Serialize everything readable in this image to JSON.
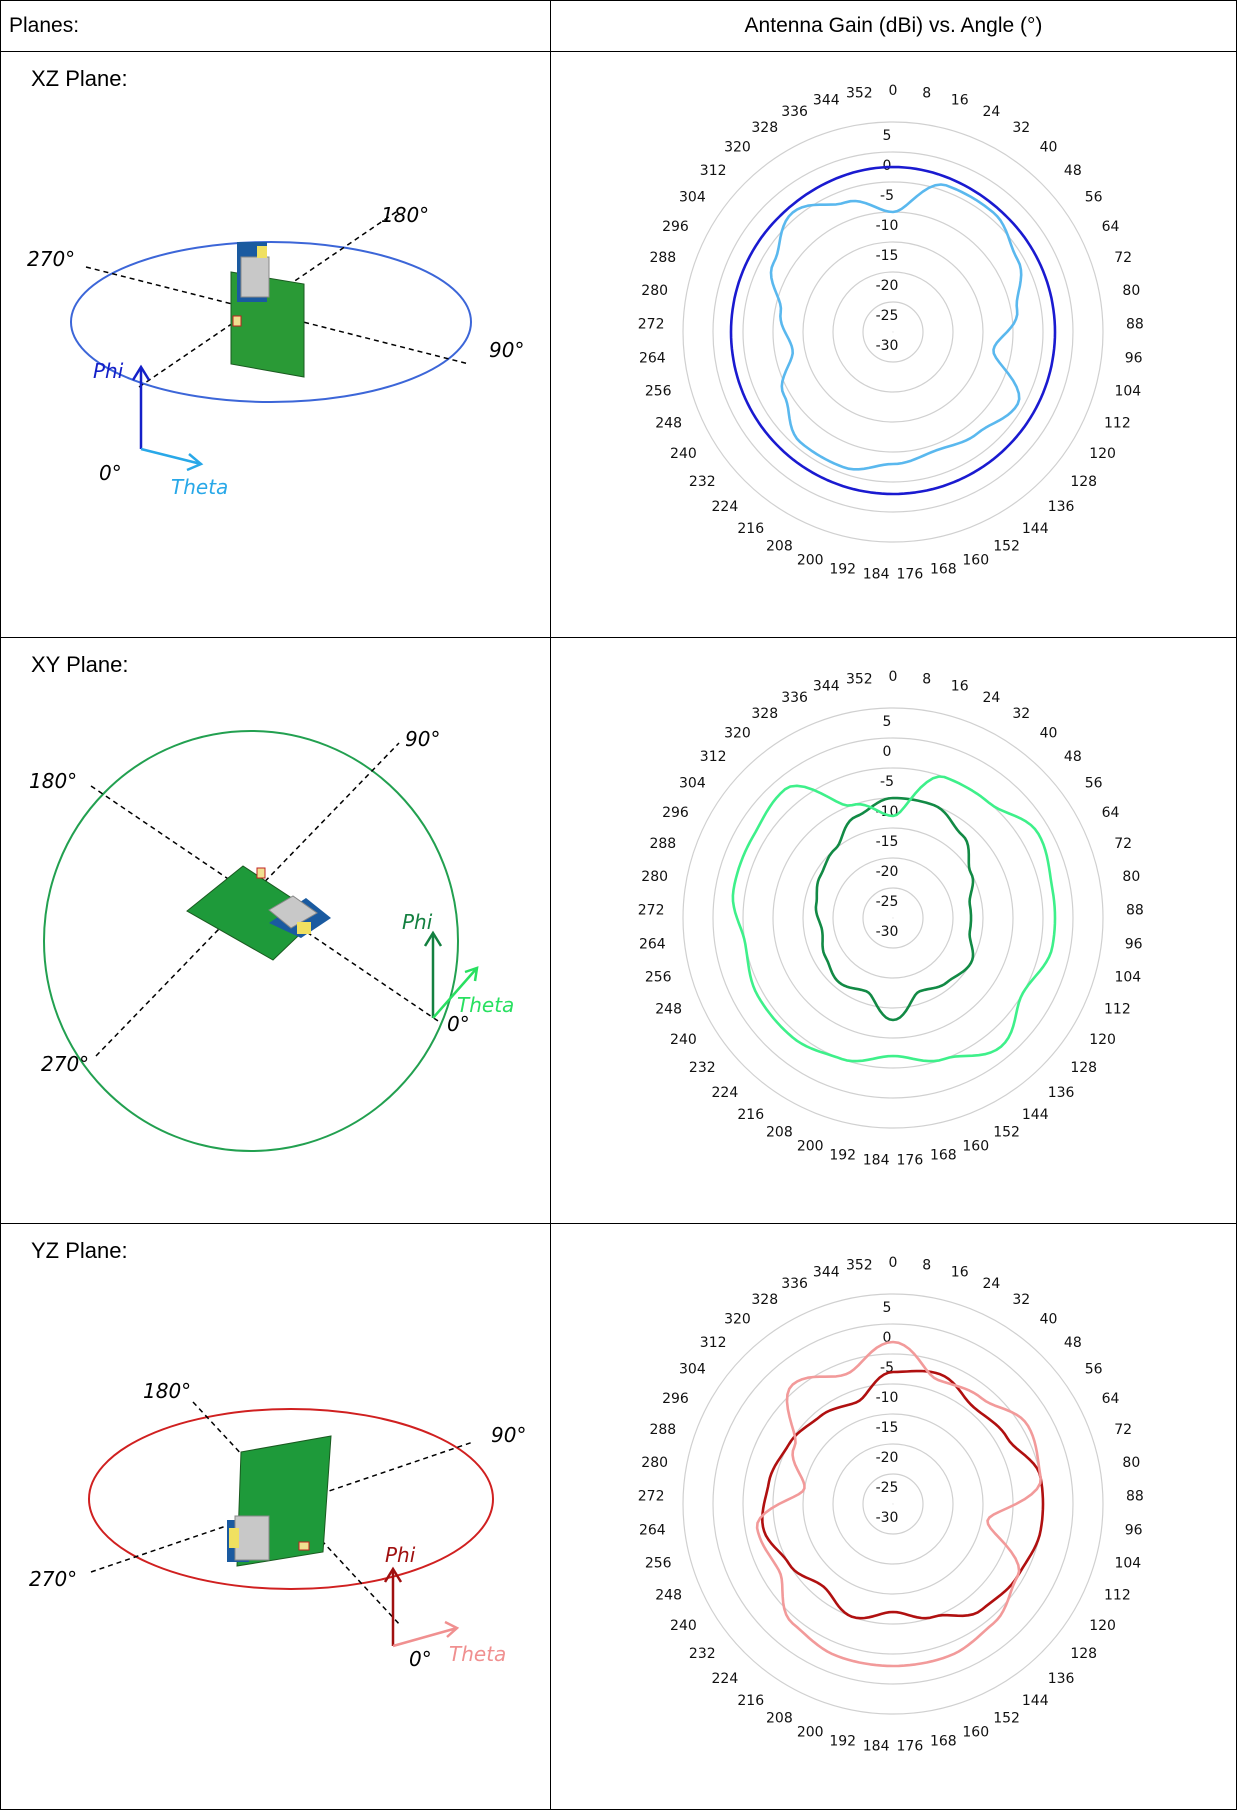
{
  "header": {
    "left": "Planes:",
    "right": "Antenna Gain (dBi) vs. Angle (°)"
  },
  "axis": {
    "radial_ticks": [
      "5",
      "0",
      "-5",
      "-10",
      "-15",
      "-20",
      "-25",
      "-30"
    ],
    "angle_ticks": [
      "0",
      "8",
      "16",
      "24",
      "32",
      "40",
      "48",
      "56",
      "64",
      "72",
      "80",
      "88",
      "96",
      "104",
      "112",
      "120",
      "128",
      "136",
      "144",
      "152",
      "160",
      "168",
      "176",
      "184",
      "192",
      "200",
      "208",
      "216",
      "224",
      "232",
      "240",
      "248",
      "256",
      "264",
      "272",
      "280",
      "288",
      "296",
      "304",
      "312",
      "320",
      "328",
      "336",
      "344",
      "352"
    ]
  },
  "planes": [
    {
      "label": "XZ Plane:",
      "angles": {
        "a0": "0°",
        "a90": "90°",
        "a180": "180°",
        "a270": "270°"
      },
      "phi": "Phi",
      "theta": "Theta",
      "colors": {
        "ellipse": "#3c66d8",
        "phi": "#1420c8",
        "theta": "#28a8e8"
      }
    },
    {
      "label": "XY Plane:",
      "angles": {
        "a0": "0°",
        "a90": "90°",
        "a180": "180°",
        "a270": "270°"
      },
      "phi": "Phi",
      "theta": "Theta",
      "colors": {
        "ellipse": "#22a050",
        "phi": "#138040",
        "theta": "#28e060"
      }
    },
    {
      "label": "YZ Plane:",
      "angles": {
        "a0": "0°",
        "a90": "90°",
        "a180": "180°",
        "a270": "270°"
      },
      "phi": "Phi",
      "theta": "Theta",
      "colors": {
        "ellipse": "#d02020",
        "phi": "#a01010",
        "theta": "#f09090"
      }
    }
  ],
  "chart_data": [
    {
      "type": "polar-line",
      "plane": "XZ Plane",
      "r_range": [
        -30,
        5
      ],
      "angle_unit": "degrees",
      "series": [
        {
          "color": "#1a1ad0",
          "angles": [
            0,
            45,
            90,
            135,
            180,
            225,
            270,
            315
          ],
          "values": [
            -2.5,
            -3,
            -3,
            -3,
            -3,
            -3,
            -3,
            -3
          ]
        },
        {
          "color": "#5ab8ee",
          "angles": [
            0,
            20,
            40,
            60,
            80,
            100,
            120,
            140,
            160,
            180,
            200,
            220,
            240,
            260,
            280,
            300,
            320,
            340
          ],
          "values": [
            -10,
            -4,
            -4,
            -6,
            -9,
            -13,
            -6,
            -8,
            -9,
            -8,
            -6,
            -6,
            -9,
            -13,
            -11,
            -7,
            -4,
            -7
          ]
        }
      ]
    },
    {
      "type": "polar-line",
      "plane": "XY Plane",
      "r_range": [
        -30,
        5
      ],
      "angle_unit": "degrees",
      "series": [
        {
          "color": "#128a45",
          "angles": [
            0,
            20,
            40,
            60,
            80,
            100,
            120,
            140,
            160,
            180,
            200,
            220,
            240,
            260,
            280,
            300,
            320,
            340
          ],
          "values": [
            -10,
            -10,
            -12,
            -15,
            -17,
            -17,
            -15,
            -16,
            -17,
            -13,
            -17,
            -16,
            -17,
            -18,
            -17,
            -16,
            -15,
            -12
          ]
        },
        {
          "color": "#3ef08a",
          "angles": [
            0,
            20,
            40,
            60,
            80,
            100,
            120,
            140,
            160,
            180,
            200,
            220,
            240,
            260,
            280,
            300,
            320,
            340
          ],
          "values": [
            -13,
            -5,
            -5,
            -2,
            -3,
            -3,
            -5,
            -2,
            -5,
            -7,
            -5,
            -4,
            -4,
            -5,
            -3,
            -3,
            -2,
            -10
          ]
        }
      ]
    },
    {
      "type": "polar-line",
      "plane": "YZ Plane",
      "r_range": [
        -30,
        5
      ],
      "angle_unit": "degrees",
      "series": [
        {
          "color": "#b01010",
          "angles": [
            0,
            20,
            40,
            60,
            80,
            100,
            120,
            140,
            160,
            180,
            200,
            220,
            240,
            260,
            280,
            300,
            320,
            340
          ],
          "values": [
            -8,
            -7,
            -9,
            -8,
            -5,
            -5,
            -6,
            -7,
            -10,
            -12,
            -10,
            -12,
            -10,
            -8,
            -9,
            -10,
            -11,
            -12
          ]
        },
        {
          "color": "#f29a9a",
          "angles": [
            0,
            20,
            40,
            60,
            80,
            100,
            120,
            140,
            160,
            180,
            200,
            220,
            240,
            260,
            280,
            300,
            320,
            340
          ],
          "values": [
            -3,
            -8,
            -7,
            -4,
            -5,
            -14,
            -6,
            -4,
            -3,
            -3,
            -3,
            -4,
            -8,
            -7,
            -15,
            -11,
            -4,
            -7
          ]
        }
      ]
    }
  ]
}
